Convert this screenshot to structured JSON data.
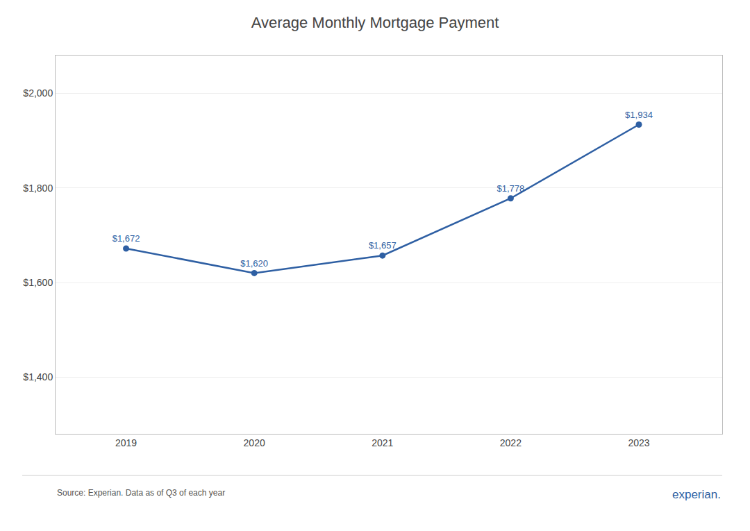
{
  "chart_data": {
    "type": "line",
    "title": "Average Monthly Mortgage Payment",
    "x": [
      2019,
      2020,
      2021,
      2022,
      2023
    ],
    "values": [
      1672,
      1620,
      1657,
      1778,
      1934
    ],
    "value_labels": [
      "$1,672",
      "$1,620",
      "$1,657",
      "$1,778",
      "$1,934"
    ],
    "color": "#2e5fa3",
    "marker": "circle",
    "data_labels": true,
    "xlim": [
      2018.45,
      2023.65
    ],
    "xticks": [
      2019,
      2020,
      2021,
      2022,
      2023
    ],
    "ylim": [
      1280,
      2080
    ],
    "yticks": [
      {
        "value": 1400,
        "label": "$1,400"
      },
      {
        "value": 1600,
        "label": "$1,600"
      },
      {
        "value": 1800,
        "label": "$1,800"
      },
      {
        "value": 2000,
        "label": "$2,000"
      }
    ],
    "grid": "y",
    "annotations": [
      {
        "text": "Source: Experian. Data as of Q3 of each year"
      },
      {
        "text": "experian.",
        "color": "#2e5fa3"
      }
    ]
  }
}
